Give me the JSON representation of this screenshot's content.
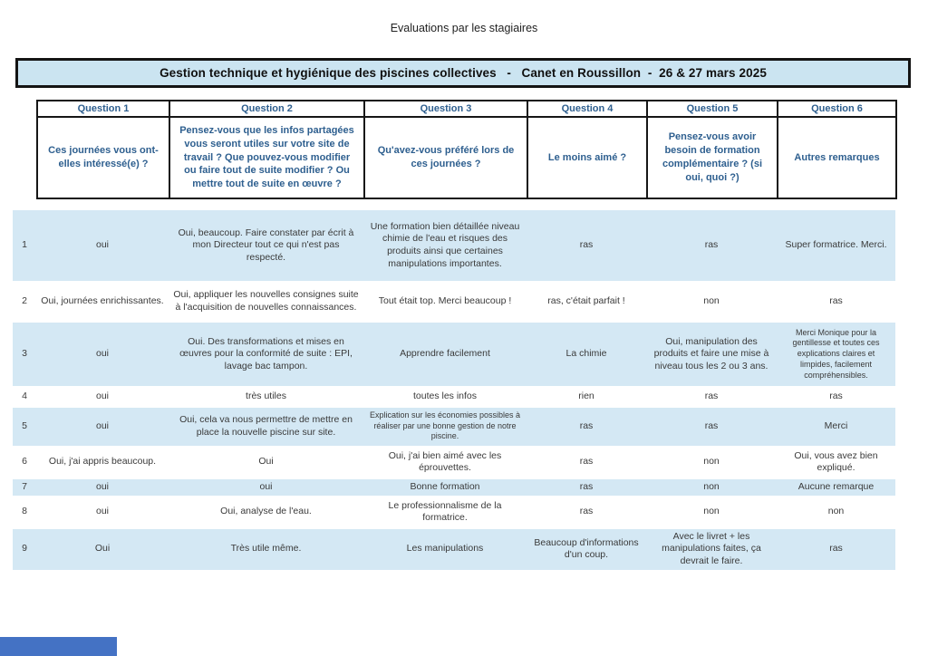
{
  "page_title": "Evaluations par les stagiaires",
  "banner_title": "Gestion technique et hygiénique des piscines collectives   -   Canet en Roussillon  -  26 & 27 mars 2025",
  "colors": {
    "row_band_blue": "#d4e8f4",
    "banner_blue": "#cbe4f1",
    "header_text_blue": "#2e5f8f",
    "footer_bar_blue": "#4472c4"
  },
  "table": {
    "columns": [
      {
        "label": "Question 1",
        "question": "Ces journées vous ont-elles intéressé(e) ?"
      },
      {
        "label": "Question 2",
        "question": "Pensez-vous que les infos partagées vous seront utiles sur votre site de travail ? Que pouvez-vous modifier ou faire tout de suite modifier ? Ou mettre tout de suite en œuvre ?"
      },
      {
        "label": "Question 3",
        "question": "Qu'avez-vous préféré lors de ces journées ?"
      },
      {
        "label": "Question 4",
        "question": "Le moins aimé ?"
      },
      {
        "label": "Question 5",
        "question": "Pensez-vous avoir besoin de formation complémentaire ? (si oui, quoi ?)"
      },
      {
        "label": "Question 6",
        "question": "Autres remarques"
      }
    ],
    "rows": [
      {
        "num": "1",
        "answers": [
          "oui",
          "Oui, beaucoup. Faire constater par écrit à mon Directeur tout ce qui n'est pas respecté.",
          "Une formation bien détaillée niveau chimie de l'eau et risques des produits ainsi que certaines manipulations importantes.",
          "ras",
          "ras",
          "Super formatrice. Merci."
        ]
      },
      {
        "num": "2",
        "answers": [
          "Oui, journées enrichissantes.",
          "Oui, appliquer les nouvelles consignes suite à l'acquisition de nouvelles connaissances.",
          "Tout était top. Merci beaucoup !",
          "ras, c'était parfait !",
          "non",
          "ras"
        ]
      },
      {
        "num": "3",
        "answers": [
          "oui",
          "Oui. Des transformations et mises en œuvres pour la conformité de suite : EPI, lavage bac tampon.",
          "Apprendre facilement",
          "La chimie",
          "Oui, manipulation des produits et faire une mise à niveau tous les 2 ou 3 ans.",
          "Merci Monique pour la gentillesse et toutes ces explications claires et limpides, facilement compréhensibles."
        ]
      },
      {
        "num": "4",
        "answers": [
          "oui",
          "très utiles",
          "toutes les infos",
          "rien",
          "ras",
          "ras"
        ]
      },
      {
        "num": "5",
        "answers": [
          "oui",
          "Oui, cela va nous permettre de mettre en place la nouvelle piscine sur site.",
          "Explication sur les économies possibles à réaliser par une bonne gestion de notre piscine.",
          "ras",
          "ras",
          "Merci"
        ]
      },
      {
        "num": "6",
        "answers": [
          "Oui, j'ai appris beaucoup.",
          "Oui",
          "Oui, j'ai bien aimé avec les éprouvettes.",
          "ras",
          "non",
          "Oui, vous avez bien expliqué."
        ]
      },
      {
        "num": "7",
        "answers": [
          "oui",
          "oui",
          "Bonne formation",
          "ras",
          "non",
          "Aucune remarque"
        ]
      },
      {
        "num": "8",
        "answers": [
          "oui",
          "Oui, analyse de l'eau.",
          "Le professionnalisme de la formatrice.",
          "ras",
          "non",
          "non"
        ]
      },
      {
        "num": "9",
        "answers": [
          "Oui",
          "Très utile même.",
          "Les manipulations",
          "Beaucoup d'informations d'un coup.",
          "Avec le livret + les manipulations faites, ça devrait le faire.",
          "ras"
        ]
      }
    ]
  }
}
